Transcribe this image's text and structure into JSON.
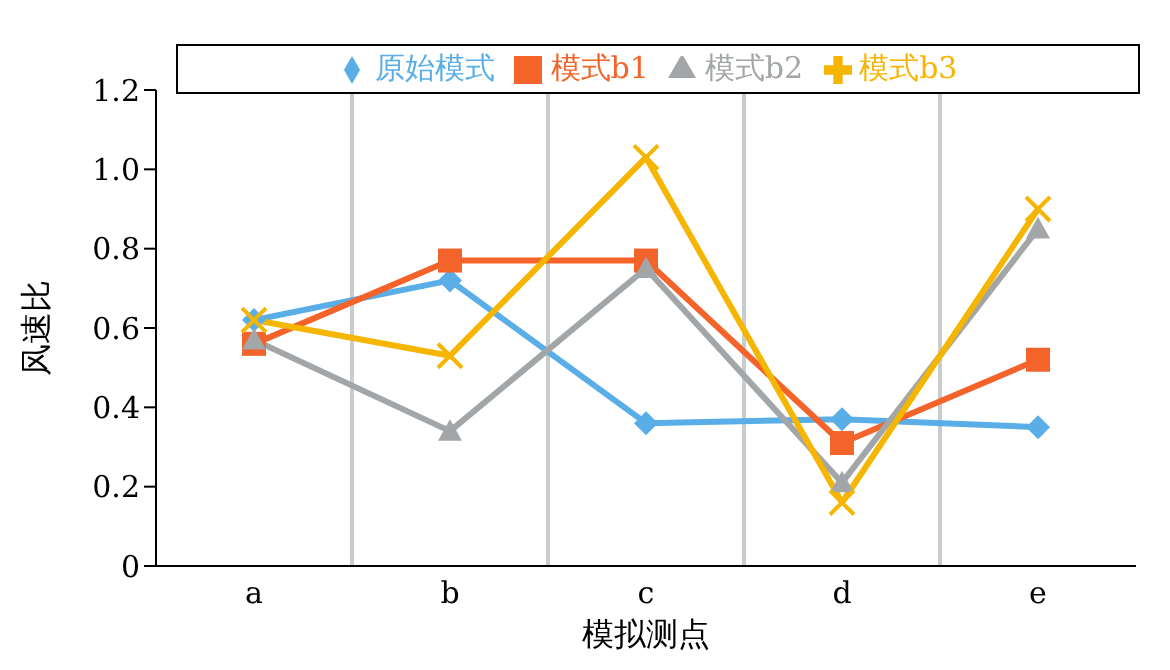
{
  "chart_data": {
    "type": "line",
    "xlabel": "模拟测点",
    "ylabel": "风速比",
    "categories": [
      "a",
      "b",
      "c",
      "d",
      "e"
    ],
    "series": [
      {
        "name": "原始模式",
        "color": "#5aaee8",
        "marker": "diamond",
        "values": [
          0.62,
          0.72,
          0.36,
          0.37,
          0.35
        ]
      },
      {
        "name": "模式b1",
        "color": "#f4632a",
        "marker": "square",
        "values": [
          0.56,
          0.77,
          0.77,
          0.31,
          0.52
        ]
      },
      {
        "name": "模式b2",
        "color": "#a2a6a8",
        "marker": "triangle",
        "values": [
          0.57,
          0.34,
          0.75,
          0.21,
          0.85
        ]
      },
      {
        "name": "模式b3",
        "color": "#f5b500",
        "marker": "cross",
        "values": [
          0.62,
          0.53,
          1.03,
          0.16,
          0.9
        ]
      }
    ],
    "ylim": [
      0,
      1.2
    ],
    "yticks": [
      0,
      0.2,
      0.4,
      0.6,
      0.8,
      {
        "value": 1,
        "label": "1.0"
      },
      1.2
    ],
    "grid": "x",
    "legend": "top"
  }
}
